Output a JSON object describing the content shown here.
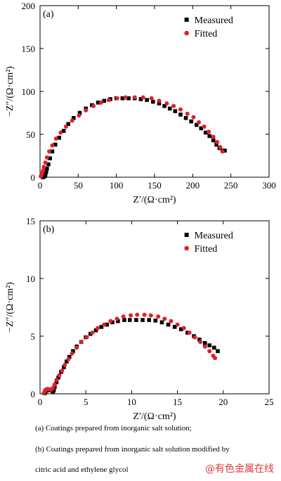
{
  "chart_data": [
    {
      "type": "scatter",
      "panel_label": "(a)",
      "xlabel": "Z′/(Ω·cm²)",
      "ylabel": "−Z″/(Ω·cm²)",
      "xlim": [
        0,
        300
      ],
      "ylim": [
        0,
        200
      ],
      "xticks": [
        "0",
        "50",
        "100",
        "150",
        "200",
        "250",
        "300"
      ],
      "yticks": [
        "0",
        "50",
        "100",
        "150",
        "200"
      ],
      "legend_position": "top-right",
      "series": [
        {
          "name": "Measured",
          "marker": "square",
          "color": "#000000",
          "points": [
            [
              4,
              0
            ],
            [
              6,
              1
            ],
            [
              7,
              3
            ],
            [
              8,
              6
            ],
            [
              9,
              10
            ],
            [
              11,
              15
            ],
            [
              13,
              22
            ],
            [
              16,
              30
            ],
            [
              20,
              38
            ],
            [
              25,
              46
            ],
            [
              31,
              54
            ],
            [
              37,
              62
            ],
            [
              44,
              69
            ],
            [
              52,
              75
            ],
            [
              60,
              80
            ],
            [
              68,
              84
            ],
            [
              76,
              87
            ],
            [
              84,
              89
            ],
            [
              92,
              91
            ],
            [
              100,
              92
            ],
            [
              108,
              92
            ],
            [
              116,
              92
            ],
            [
              124,
              92
            ],
            [
              132,
              91
            ],
            [
              140,
              90
            ],
            [
              148,
              88
            ],
            [
              156,
              86
            ],
            [
              163,
              83
            ],
            [
              170,
              80
            ],
            [
              177,
              77
            ],
            [
              184,
              73
            ],
            [
              191,
              69
            ],
            [
              198,
              65
            ],
            [
              205,
              61
            ],
            [
              211,
              57
            ],
            [
              217,
              52
            ],
            [
              222,
              48
            ],
            [
              227,
              43
            ],
            [
              231,
              38
            ],
            [
              235,
              34
            ],
            [
              239,
              31
            ],
            [
              242,
              31
            ]
          ]
        },
        {
          "name": "Fitted",
          "marker": "circle",
          "color": "#e0202a",
          "points": [
            [
              1,
              1
            ],
            [
              2,
              3
            ],
            [
              3,
              5
            ],
            [
              4,
              8
            ],
            [
              5,
              12
            ],
            [
              7,
              17
            ],
            [
              9,
              23
            ],
            [
              12,
              30
            ],
            [
              16,
              37
            ],
            [
              21,
              45
            ],
            [
              27,
              52
            ],
            [
              34,
              59
            ],
            [
              42,
              66
            ],
            [
              51,
              72
            ],
            [
              60,
              78
            ],
            [
              70,
              83
            ],
            [
              80,
              87
            ],
            [
              90,
              90
            ],
            [
              101,
              92
            ],
            [
              112,
              93
            ],
            [
              124,
              93
            ],
            [
              135,
              93
            ],
            [
              146,
              92
            ],
            [
              156,
              89
            ],
            [
              166,
              86
            ],
            [
              175,
              83
            ],
            [
              184,
              79
            ],
            [
              193,
              74
            ],
            [
              201,
              70
            ],
            [
              208,
              64
            ],
            [
              215,
              59
            ],
            [
              221,
              53
            ],
            [
              227,
              47
            ],
            [
              232,
              41
            ],
            [
              236,
              35
            ],
            [
              239,
              30
            ]
          ]
        }
      ]
    },
    {
      "type": "scatter",
      "panel_label": "(b)",
      "xlabel": "Z′/(Ω·cm²)",
      "ylabel": "−Z″/(Ω·cm²)",
      "xlim": [
        0,
        25
      ],
      "ylim": [
        0,
        15
      ],
      "xticks": [
        "0",
        "5",
        "10",
        "15",
        "20",
        "25"
      ],
      "yticks": [
        "0",
        "5",
        "10",
        "15"
      ],
      "legend_position": "top-right",
      "series": [
        {
          "name": "Measured",
          "marker": "square",
          "color": "#000000",
          "points": [
            [
              0.5,
              0.05
            ],
            [
              0.6,
              0.2
            ],
            [
              0.8,
              0.3
            ],
            [
              1.0,
              0.35
            ],
            [
              1.2,
              0.3
            ],
            [
              1.4,
              0.2
            ],
            [
              1.5,
              0.3
            ],
            [
              1.6,
              0.6
            ],
            [
              1.8,
              1.0
            ],
            [
              2.0,
              1.4
            ],
            [
              2.3,
              1.9
            ],
            [
              2.6,
              2.3
            ],
            [
              2.9,
              2.8
            ],
            [
              3.2,
              3.2
            ],
            [
              3.6,
              3.7
            ],
            [
              4.0,
              4.1
            ],
            [
              4.5,
              4.5
            ],
            [
              5.0,
              4.9
            ],
            [
              5.5,
              5.2
            ],
            [
              6.1,
              5.5
            ],
            [
              6.7,
              5.8
            ],
            [
              7.3,
              6.0
            ],
            [
              7.9,
              6.2
            ],
            [
              8.5,
              6.3
            ],
            [
              9.2,
              6.4
            ],
            [
              9.8,
              6.4
            ],
            [
              10.5,
              6.4
            ],
            [
              11.2,
              6.4
            ],
            [
              11.9,
              6.4
            ],
            [
              12.6,
              6.35
            ],
            [
              13.3,
              6.2
            ],
            [
              14.0,
              6.0
            ],
            [
              14.7,
              5.8
            ],
            [
              15.4,
              5.6
            ],
            [
              16.1,
              5.3
            ],
            [
              16.8,
              5.0
            ],
            [
              17.4,
              4.7
            ],
            [
              18.0,
              4.4
            ],
            [
              18.5,
              4.2
            ],
            [
              19.0,
              4.0
            ],
            [
              19.4,
              3.7
            ]
          ]
        },
        {
          "name": "Fitted",
          "marker": "circle",
          "color": "#e0202a",
          "points": [
            [
              0.4,
              0.05
            ],
            [
              0.5,
              0.2
            ],
            [
              0.6,
              0.35
            ],
            [
              0.8,
              0.42
            ],
            [
              1.0,
              0.4
            ],
            [
              1.2,
              0.35
            ],
            [
              1.4,
              0.5
            ],
            [
              1.6,
              0.8
            ],
            [
              1.8,
              1.2
            ],
            [
              2.1,
              1.6
            ],
            [
              2.4,
              2.0
            ],
            [
              2.7,
              2.5
            ],
            [
              3.1,
              3.0
            ],
            [
              3.5,
              3.5
            ],
            [
              4.0,
              4.0
            ],
            [
              4.5,
              4.5
            ],
            [
              5.1,
              4.9
            ],
            [
              5.7,
              5.3
            ],
            [
              6.3,
              5.7
            ],
            [
              7.0,
              6.0
            ],
            [
              7.7,
              6.3
            ],
            [
              8.4,
              6.5
            ],
            [
              9.1,
              6.7
            ],
            [
              9.9,
              6.8
            ],
            [
              10.6,
              6.85
            ],
            [
              11.4,
              6.85
            ],
            [
              12.1,
              6.8
            ],
            [
              12.9,
              6.7
            ],
            [
              13.6,
              6.5
            ],
            [
              14.3,
              6.3
            ],
            [
              15.0,
              6.0
            ],
            [
              15.7,
              5.7
            ],
            [
              16.3,
              5.3
            ],
            [
              16.9,
              4.9
            ],
            [
              17.5,
              4.5
            ],
            [
              18.0,
              4.1
            ],
            [
              18.5,
              3.7
            ],
            [
              18.9,
              3.3
            ],
            [
              19.1,
              3.1
            ]
          ]
        }
      ]
    }
  ],
  "captions": {
    "a": "(a) Coatings prepared from inorganic salt solution;",
    "b_line1": "(b) Coatings prepared from inorganic salt solution modified by",
    "b_line2": "citric acid and ethylene glycol"
  },
  "watermark": "@有色金属在线"
}
